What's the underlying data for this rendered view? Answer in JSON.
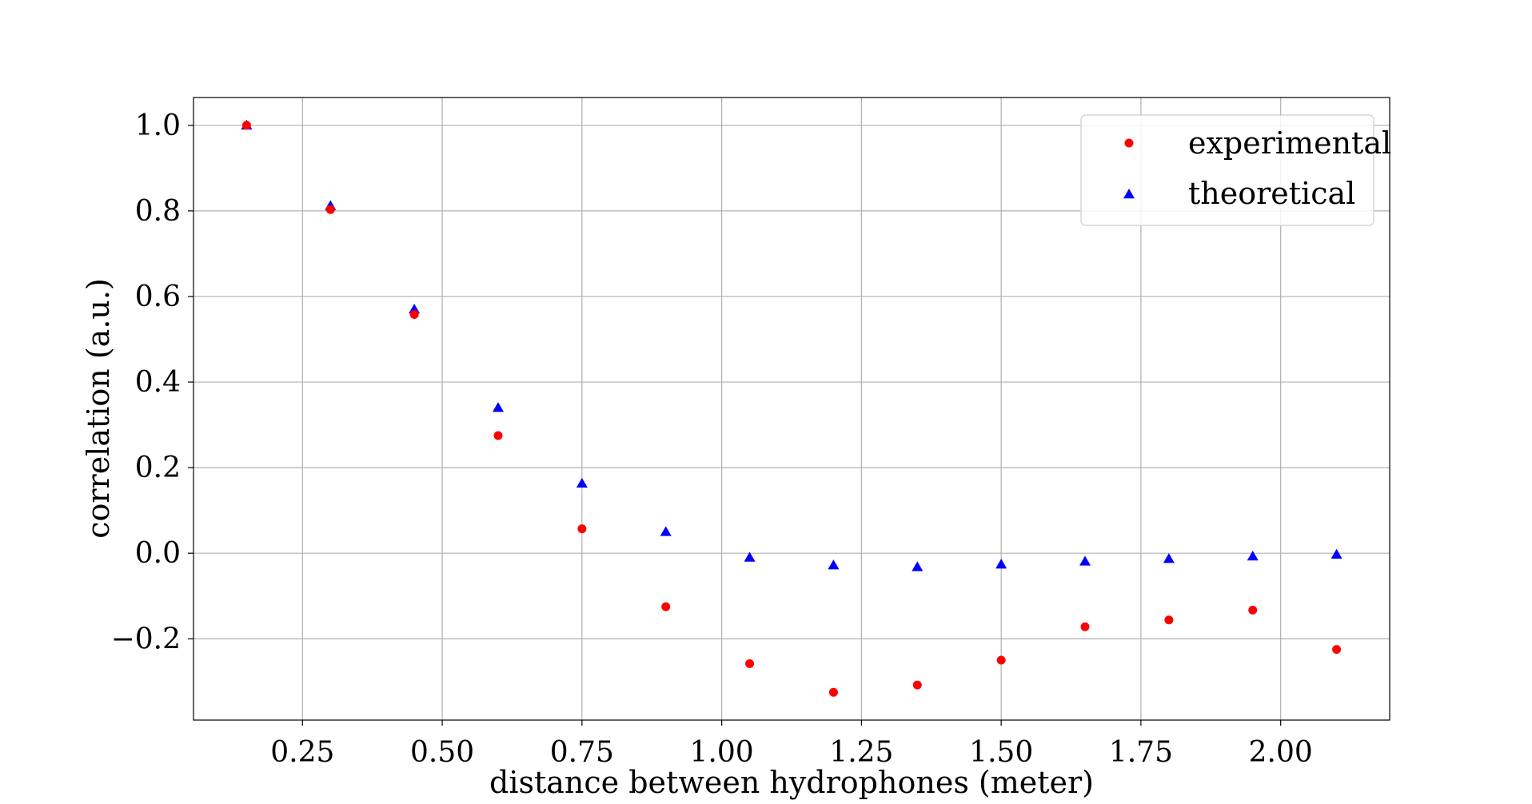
{
  "chart_data": {
    "type": "scatter",
    "title": "",
    "xlabel": "distance between hydrophones (meter)",
    "ylabel": "correlation (a.u.)",
    "xlim": [
      0.055,
      2.195
    ],
    "ylim": [
      -0.39,
      1.065
    ],
    "grid": true,
    "legend_position": "top-right",
    "x_ticks": [
      0.25,
      0.5,
      0.75,
      1.0,
      1.25,
      1.5,
      1.75,
      2.0
    ],
    "x_tick_labels": [
      "0.25",
      "0.50",
      "0.75",
      "1.00",
      "1.25",
      "1.50",
      "1.75",
      "2.00"
    ],
    "y_ticks": [
      -0.2,
      0.0,
      0.2,
      0.4,
      0.6,
      0.8,
      1.0
    ],
    "y_tick_labels": [
      "−0.2",
      "0.0",
      "0.2",
      "0.4",
      "0.6",
      "0.8",
      "1.0"
    ],
    "x": [
      0.15,
      0.3,
      0.45,
      0.6,
      0.75,
      0.9,
      1.05,
      1.2,
      1.35,
      1.5,
      1.65,
      1.8,
      1.95,
      2.1
    ],
    "series": [
      {
        "name": "experimental",
        "marker": "circle",
        "color": "#ff0000",
        "values": [
          1.0,
          0.803,
          0.558,
          0.275,
          0.057,
          -0.125,
          -0.258,
          -0.325,
          -0.308,
          -0.25,
          -0.172,
          -0.156,
          -0.133,
          -0.225
        ]
      },
      {
        "name": "theoretical",
        "marker": "triangle",
        "color": "#0000ff",
        "values": [
          1.0,
          0.812,
          0.57,
          0.34,
          0.163,
          0.05,
          -0.01,
          -0.028,
          -0.032,
          -0.026,
          -0.019,
          -0.013,
          -0.007,
          -0.003
        ]
      }
    ]
  }
}
